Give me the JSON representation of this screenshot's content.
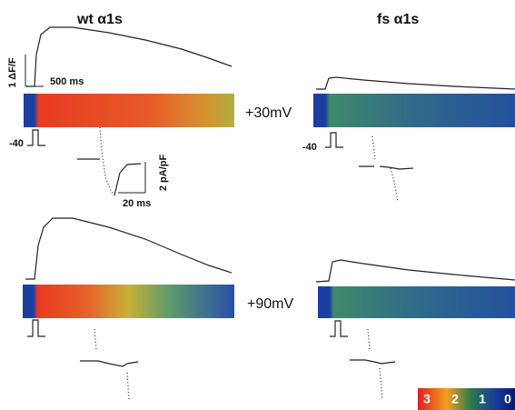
{
  "header": {
    "left_title": "wt α1s",
    "right_title": "fs α1s"
  },
  "scale_bars": {
    "fluorescence": "1 ΔF/F",
    "time_long": "500 ms",
    "current": "2 pA/pF",
    "time_short": "20 ms"
  },
  "holding_potential": "-40",
  "conditions": [
    "+30mV",
    "+90mV"
  ],
  "color_scale": [
    "3",
    "2",
    "1",
    "0"
  ]
}
